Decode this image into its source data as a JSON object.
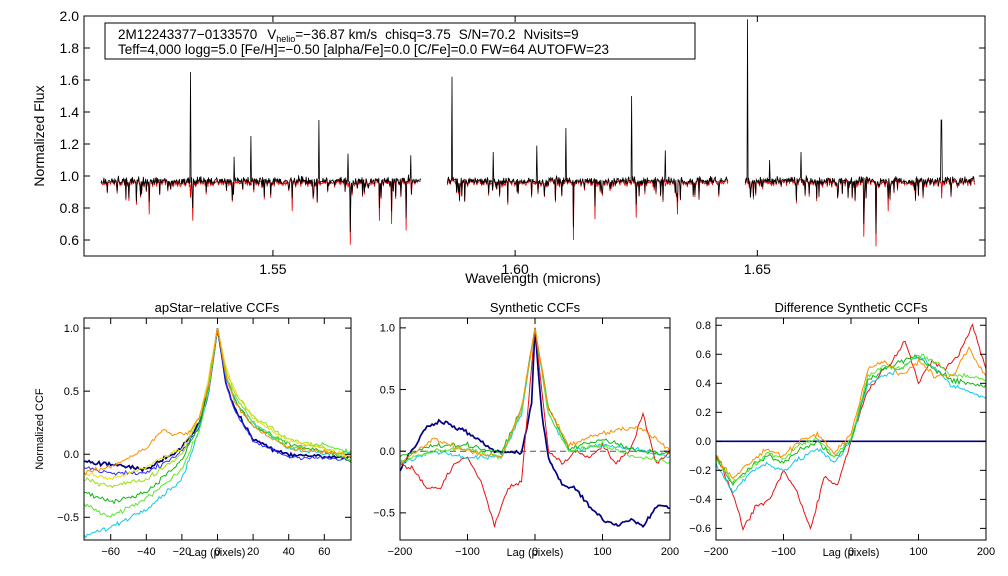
{
  "chart_data": [
    {
      "type": "line",
      "id": "spectrum",
      "xlabel": "Wavelength (microns)",
      "ylabel": "Normalized Flux",
      "xlim": [
        1.511,
        1.697
      ],
      "ylim": [
        0.5,
        2.0
      ],
      "xticks": [
        1.55,
        1.6,
        1.65
      ],
      "xtick_labels": [
        "1.55",
        "1.60",
        "1.65"
      ],
      "yticks": [
        0.6,
        0.8,
        1.0,
        1.2,
        1.4,
        1.6,
        1.8,
        2.0
      ],
      "ytick_labels": [
        "0.6",
        "0.8",
        "1.0",
        "1.2",
        "1.4",
        "1.6",
        "1.8",
        "2.0"
      ],
      "annotation": {
        "object_id": "2M12243377−0133570",
        "vhelio_prefix": "V",
        "vhelio_sub": "helio",
        "vhelio_value": "=−36.87 km/s",
        "chisq": "chisq=3.75",
        "snr": "S/N=70.2",
        "nvisits": "Nvisits=9",
        "line2": "Teff=4,000 logg=5.0 [Fe/H]=−0.50 [alpha/Fe]=0.0 [C/Fe]=0.0 FW=64 AUTOFW=23"
      },
      "chips": [
        [
          1.5145,
          1.5805
        ],
        [
          1.586,
          1.644
        ],
        [
          1.6475,
          1.695
        ]
      ],
      "continuum": 0.97,
      "spikes": [
        {
          "x": 1.533,
          "y": 1.65
        },
        {
          "x": 1.542,
          "y": 1.12
        },
        {
          "x": 1.5455,
          "y": 1.25
        },
        {
          "x": 1.5595,
          "y": 1.35
        },
        {
          "x": 1.5655,
          "y": 1.14
        },
        {
          "x": 1.5785,
          "y": 1.13
        },
        {
          "x": 1.587,
          "y": 1.62
        },
        {
          "x": 1.5955,
          "y": 1.15
        },
        {
          "x": 1.6045,
          "y": 1.19
        },
        {
          "x": 1.6105,
          "y": 1.3
        },
        {
          "x": 1.6165,
          "y": 1.22
        },
        {
          "x": 1.624,
          "y": 1.5
        },
        {
          "x": 1.631,
          "y": 1.16
        },
        {
          "x": 1.648,
          "y": 1.98
        },
        {
          "x": 1.6525,
          "y": 1.1
        },
        {
          "x": 1.659,
          "y": 1.15
        },
        {
          "x": 1.672,
          "y": 1.25
        },
        {
          "x": 1.688,
          "y": 1.35
        }
      ],
      "dips": [
        {
          "x": 1.5245,
          "y": 0.76
        },
        {
          "x": 1.5335,
          "y": 0.72
        },
        {
          "x": 1.554,
          "y": 0.78
        },
        {
          "x": 1.566,
          "y": 0.57
        },
        {
          "x": 1.572,
          "y": 0.72
        },
        {
          "x": 1.5745,
          "y": 0.7
        },
        {
          "x": 1.5775,
          "y": 0.66
        },
        {
          "x": 1.612,
          "y": 0.6
        },
        {
          "x": 1.6165,
          "y": 0.73
        },
        {
          "x": 1.625,
          "y": 0.74
        },
        {
          "x": 1.6335,
          "y": 0.76
        },
        {
          "x": 1.672,
          "y": 0.62
        },
        {
          "x": 1.6745,
          "y": 0.56
        },
        {
          "x": 1.677,
          "y": 0.78
        }
      ]
    },
    {
      "type": "line",
      "id": "apstar_ccf",
      "title": "apStar−relative CCFs",
      "xlabel": "Lag (pixels)",
      "ylabel": "Normalized CCF",
      "xlim": [
        -75,
        75
      ],
      "ylim": [
        -0.68,
        1.08
      ],
      "xticks": [
        -60,
        -40,
        -20,
        0,
        20,
        40,
        60
      ],
      "xtick_labels": [
        "−60",
        "−40",
        "−20",
        "0",
        "20",
        "40",
        "60"
      ],
      "yticks": [
        -0.5,
        0.0,
        0.5,
        1.0
      ],
      "ytick_labels": [
        "−0.5",
        "0.0",
        "0.5",
        "1.0"
      ],
      "zero_line": false,
      "series": [
        {
          "name": "navy",
          "color": "#000080",
          "width": 1.7,
          "x": [
            -75,
            -60,
            -40,
            -20,
            -10,
            -5,
            0,
            5,
            10,
            20,
            30,
            40,
            60,
            75
          ],
          "y": [
            -0.05,
            -0.08,
            -0.12,
            0.05,
            0.25,
            0.5,
            1.0,
            0.55,
            0.35,
            0.12,
            0.05,
            0.0,
            -0.02,
            -0.03
          ]
        },
        {
          "name": "blue",
          "color": "#2c2cff",
          "width": 1,
          "x": [
            -75,
            -60,
            -40,
            -20,
            -10,
            -5,
            0,
            5,
            10,
            20,
            40,
            60,
            75
          ],
          "y": [
            -0.1,
            -0.15,
            -0.15,
            0.02,
            0.22,
            0.48,
            1.0,
            0.55,
            0.33,
            0.1,
            -0.02,
            -0.03,
            -0.05
          ]
        },
        {
          "name": "cyan",
          "color": "#14c8e6",
          "width": 1,
          "x": [
            -75,
            -60,
            -40,
            -20,
            -10,
            -5,
            0,
            5,
            10,
            20,
            40,
            60,
            75
          ],
          "y": [
            -0.65,
            -0.58,
            -0.43,
            -0.2,
            0.2,
            0.5,
            1.0,
            0.6,
            0.42,
            0.25,
            0.05,
            0.0,
            0.02
          ]
        },
        {
          "name": "green",
          "color": "#14b414",
          "width": 1,
          "x": [
            -75,
            -60,
            -40,
            -20,
            -10,
            -5,
            0,
            5,
            10,
            20,
            40,
            60,
            75
          ],
          "y": [
            -0.3,
            -0.38,
            -0.3,
            -0.05,
            0.25,
            0.55,
            1.0,
            0.6,
            0.42,
            0.22,
            0.08,
            0.02,
            -0.05
          ]
        },
        {
          "name": "lime",
          "color": "#5ae632",
          "width": 1,
          "x": [
            -75,
            -60,
            -40,
            -20,
            -10,
            -5,
            0,
            5,
            10,
            20,
            40,
            60,
            75
          ],
          "y": [
            -0.4,
            -0.5,
            -0.35,
            -0.12,
            0.2,
            0.5,
            1.0,
            0.62,
            0.45,
            0.25,
            0.05,
            0.08,
            0.0
          ]
        },
        {
          "name": "yellowgreen",
          "color": "#a0dc14",
          "width": 1,
          "x": [
            -75,
            -60,
            -40,
            -20,
            -10,
            -5,
            0,
            5,
            10,
            20,
            40,
            60,
            75
          ],
          "y": [
            -0.2,
            -0.25,
            -0.2,
            0.0,
            0.3,
            0.6,
            1.0,
            0.65,
            0.48,
            0.3,
            0.12,
            0.05,
            -0.05
          ]
        },
        {
          "name": "yellow",
          "color": "#e6dc1e",
          "width": 1,
          "x": [
            -75,
            -60,
            -40,
            -20,
            -10,
            -5,
            0,
            5,
            10,
            20,
            40,
            60,
            75
          ],
          "y": [
            -0.15,
            -0.2,
            -0.1,
            0.05,
            0.3,
            0.6,
            1.0,
            0.68,
            0.5,
            0.28,
            0.1,
            0.05,
            -0.02
          ]
        },
        {
          "name": "orange",
          "color": "#ff8c00",
          "width": 1,
          "x": [
            -75,
            -60,
            -40,
            -30,
            -25,
            -15,
            -10,
            -5,
            0,
            5,
            10,
            20,
            40,
            60,
            75
          ],
          "y": [
            -0.15,
            -0.1,
            0.05,
            0.2,
            0.15,
            0.18,
            0.3,
            0.55,
            1.0,
            0.6,
            0.4,
            0.22,
            0.05,
            0.02,
            0.0
          ]
        }
      ]
    },
    {
      "type": "line",
      "id": "synthetic_ccf",
      "title": "Synthetic CCFs",
      "xlabel": "Lag (pixels)",
      "xlim": [
        -200,
        200
      ],
      "ylim": [
        -0.72,
        1.08
      ],
      "xticks": [
        -200,
        -100,
        0,
        100,
        200
      ],
      "xtick_labels": [
        "−200",
        "−100",
        "0",
        "100",
        "200"
      ],
      "yticks": [
        -0.5,
        0.0,
        0.5,
        1.0
      ],
      "ytick_labels": [
        "−0.5",
        "0.0",
        "0.5",
        "1.0"
      ],
      "zero_line": true,
      "series": [
        {
          "name": "navy",
          "color": "#000080",
          "width": 1.7,
          "x": [
            -200,
            -160,
            -140,
            -100,
            -60,
            -20,
            -5,
            0,
            10,
            20,
            40,
            60,
            80,
            100,
            120,
            140,
            160,
            180,
            200
          ],
          "y": [
            -0.15,
            0.2,
            0.25,
            0.15,
            0.0,
            -0.02,
            0.4,
            1.0,
            0.3,
            -0.05,
            -0.28,
            -0.3,
            -0.45,
            -0.55,
            -0.6,
            -0.55,
            -0.6,
            -0.45,
            -0.45
          ]
        },
        {
          "name": "red",
          "color": "#e61414",
          "width": 1,
          "x": [
            -200,
            -180,
            -160,
            -140,
            -120,
            -100,
            -80,
            -60,
            -40,
            -20,
            0,
            20,
            40,
            60,
            80,
            100,
            120,
            140,
            160,
            180,
            200
          ],
          "y": [
            -0.1,
            -0.15,
            -0.3,
            -0.3,
            -0.1,
            -0.05,
            -0.25,
            -0.6,
            -0.3,
            -0.25,
            1.0,
            0.0,
            -0.1,
            0.0,
            -0.05,
            0.05,
            -0.1,
            0.0,
            0.3,
            -0.1,
            0.0
          ]
        },
        {
          "name": "cyan",
          "color": "#14c8e6",
          "width": 1,
          "x": [
            -200,
            -150,
            -100,
            -50,
            -20,
            0,
            20,
            50,
            100,
            150,
            200
          ],
          "y": [
            -0.1,
            0.0,
            -0.05,
            -0.05,
            0.3,
            1.0,
            0.3,
            0.0,
            0.05,
            0.02,
            -0.05
          ]
        },
        {
          "name": "green",
          "color": "#14b414",
          "width": 1,
          "x": [
            -200,
            -150,
            -100,
            -50,
            -20,
            0,
            20,
            50,
            100,
            150,
            200
          ],
          "y": [
            -0.05,
            0.05,
            0.05,
            -0.02,
            0.35,
            1.0,
            0.35,
            0.02,
            0.1,
            0.0,
            -0.02
          ]
        },
        {
          "name": "lime",
          "color": "#5ae632",
          "width": 1,
          "x": [
            -200,
            -150,
            -100,
            -50,
            -20,
            0,
            20,
            50,
            100,
            150,
            200
          ],
          "y": [
            -0.08,
            0.0,
            0.02,
            -0.05,
            0.32,
            1.0,
            0.3,
            0.0,
            0.05,
            -0.05,
            -0.08
          ]
        },
        {
          "name": "orange",
          "color": "#ff8c00",
          "width": 1,
          "x": [
            -200,
            -150,
            -100,
            -50,
            -20,
            0,
            20,
            50,
            100,
            150,
            180,
            200
          ],
          "y": [
            -0.1,
            0.1,
            0.0,
            -0.05,
            0.35,
            1.0,
            0.35,
            0.05,
            0.15,
            0.2,
            0.1,
            0.0
          ]
        }
      ]
    },
    {
      "type": "line",
      "id": "difference_ccf",
      "title": "Difference Synthetic CCFs",
      "xlabel": "Lag (pixels)",
      "xlim": [
        -200,
        200
      ],
      "ylim": [
        -0.68,
        0.85
      ],
      "xticks": [
        -200,
        -100,
        0,
        100,
        200
      ],
      "xtick_labels": [
        "−200",
        "−100",
        "0",
        "100",
        "200"
      ],
      "yticks": [
        -0.6,
        -0.4,
        -0.2,
        0.0,
        0.2,
        0.4,
        0.6,
        0.8
      ],
      "ytick_labels": [
        "−0.6",
        "−0.4",
        "−0.2",
        "0.0",
        "0.2",
        "0.4",
        "0.6",
        "0.8"
      ],
      "zero_line": true,
      "series": [
        {
          "name": "navy",
          "color": "#000080",
          "width": 1.7,
          "x": [
            -200,
            200
          ],
          "y": [
            0.0,
            0.0
          ]
        },
        {
          "name": "red",
          "color": "#e61414",
          "width": 1,
          "x": [
            -200,
            -180,
            -160,
            -140,
            -120,
            -100,
            -80,
            -60,
            -40,
            -20,
            0,
            20,
            40,
            60,
            80,
            100,
            120,
            140,
            160,
            180,
            200
          ],
          "y": [
            -0.1,
            -0.3,
            -0.6,
            -0.45,
            -0.4,
            -0.2,
            -0.35,
            -0.6,
            -0.25,
            -0.3,
            0.0,
            0.3,
            0.45,
            0.55,
            0.7,
            0.4,
            0.55,
            0.5,
            0.6,
            0.8,
            0.5
          ]
        },
        {
          "name": "cyan",
          "color": "#14c8e6",
          "width": 1,
          "x": [
            -200,
            -175,
            -150,
            -125,
            -100,
            -75,
            -50,
            -25,
            0,
            25,
            50,
            75,
            100,
            125,
            150,
            175,
            200
          ],
          "y": [
            -0.15,
            -0.35,
            -0.22,
            -0.15,
            -0.2,
            -0.12,
            -0.05,
            -0.15,
            0.0,
            0.4,
            0.45,
            0.5,
            0.6,
            0.5,
            0.38,
            0.35,
            0.3
          ]
        },
        {
          "name": "green",
          "color": "#14b414",
          "width": 1,
          "x": [
            -200,
            -175,
            -150,
            -125,
            -100,
            -75,
            -50,
            -25,
            0,
            25,
            50,
            75,
            100,
            125,
            150,
            175,
            200
          ],
          "y": [
            -0.1,
            -0.3,
            -0.18,
            -0.1,
            -0.15,
            -0.05,
            0.0,
            -0.12,
            0.0,
            0.42,
            0.5,
            0.55,
            0.58,
            0.5,
            0.42,
            0.4,
            0.38
          ]
        },
        {
          "name": "lime",
          "color": "#5ae632",
          "width": 1,
          "x": [
            -200,
            -175,
            -150,
            -125,
            -100,
            -75,
            -50,
            -25,
            0,
            25,
            50,
            75,
            100,
            125,
            150,
            175,
            200
          ],
          "y": [
            -0.12,
            -0.28,
            -0.2,
            -0.08,
            -0.12,
            -0.02,
            0.02,
            -0.1,
            0.02,
            0.45,
            0.52,
            0.5,
            0.6,
            0.55,
            0.45,
            0.45,
            0.42
          ]
        },
        {
          "name": "orange",
          "color": "#ff8c00",
          "width": 1,
          "x": [
            -200,
            -175,
            -150,
            -125,
            -100,
            -75,
            -50,
            -25,
            0,
            25,
            50,
            75,
            100,
            125,
            150,
            175,
            200
          ],
          "y": [
            -0.1,
            -0.25,
            -0.15,
            -0.05,
            -0.1,
            0.0,
            0.05,
            -0.08,
            0.05,
            0.5,
            0.55,
            0.45,
            0.55,
            0.45,
            0.45,
            0.65,
            0.45
          ]
        }
      ]
    }
  ]
}
